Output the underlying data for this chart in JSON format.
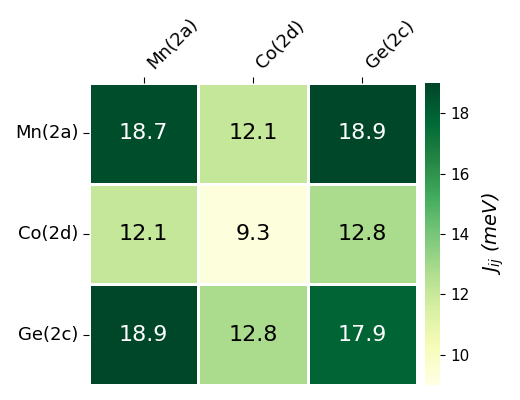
{
  "labels": [
    "Mn(2a)",
    "Co(2d)",
    "Ge(2c)"
  ],
  "matrix": [
    [
      18.7,
      12.1,
      18.9
    ],
    [
      12.1,
      9.3,
      12.8
    ],
    [
      18.9,
      12.8,
      17.9
    ]
  ],
  "vmin": 9.0,
  "vmax": 19.0,
  "colorbar_ticks": [
    10,
    12,
    14,
    16,
    18
  ],
  "colorbar_label": "$J_{ij}$ (meV)",
  "cmap": "YlGn",
  "text_color_threshold": 14.5,
  "fontsize_values": 16,
  "fontsize_labels": 13,
  "fontsize_colorbar_ticks": 11,
  "fontsize_colorbar_label": 14,
  "background_color": "#ffffff"
}
